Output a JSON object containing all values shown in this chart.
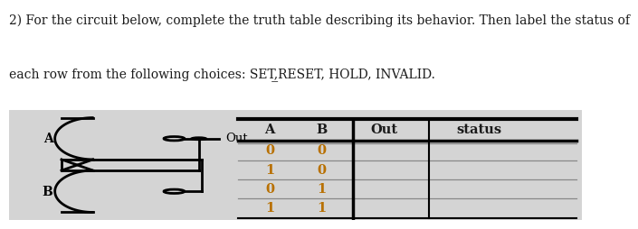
{
  "title_line1": "2) For the circuit below, complete the truth table describing its behavior. Then label the status of",
  "title_line2": "each row from the following choices: SET,̲RESET, HOLD, INVALID.",
  "bg_color": "#d4d4d4",
  "table_headers": [
    "A",
    "B",
    "Out",
    "status"
  ],
  "table_rows": [
    [
      "0",
      "0",
      "",
      ""
    ],
    [
      "1",
      "0",
      "",
      ""
    ],
    [
      "0",
      "1",
      "",
      ""
    ],
    [
      "1",
      "1",
      "",
      ""
    ]
  ],
  "text_color": "#1a1a1a",
  "table_num_color": "#b87000",
  "table_header_color": "#1a1a1a",
  "font_size_title": 10.0,
  "font_size_table": 10.5
}
